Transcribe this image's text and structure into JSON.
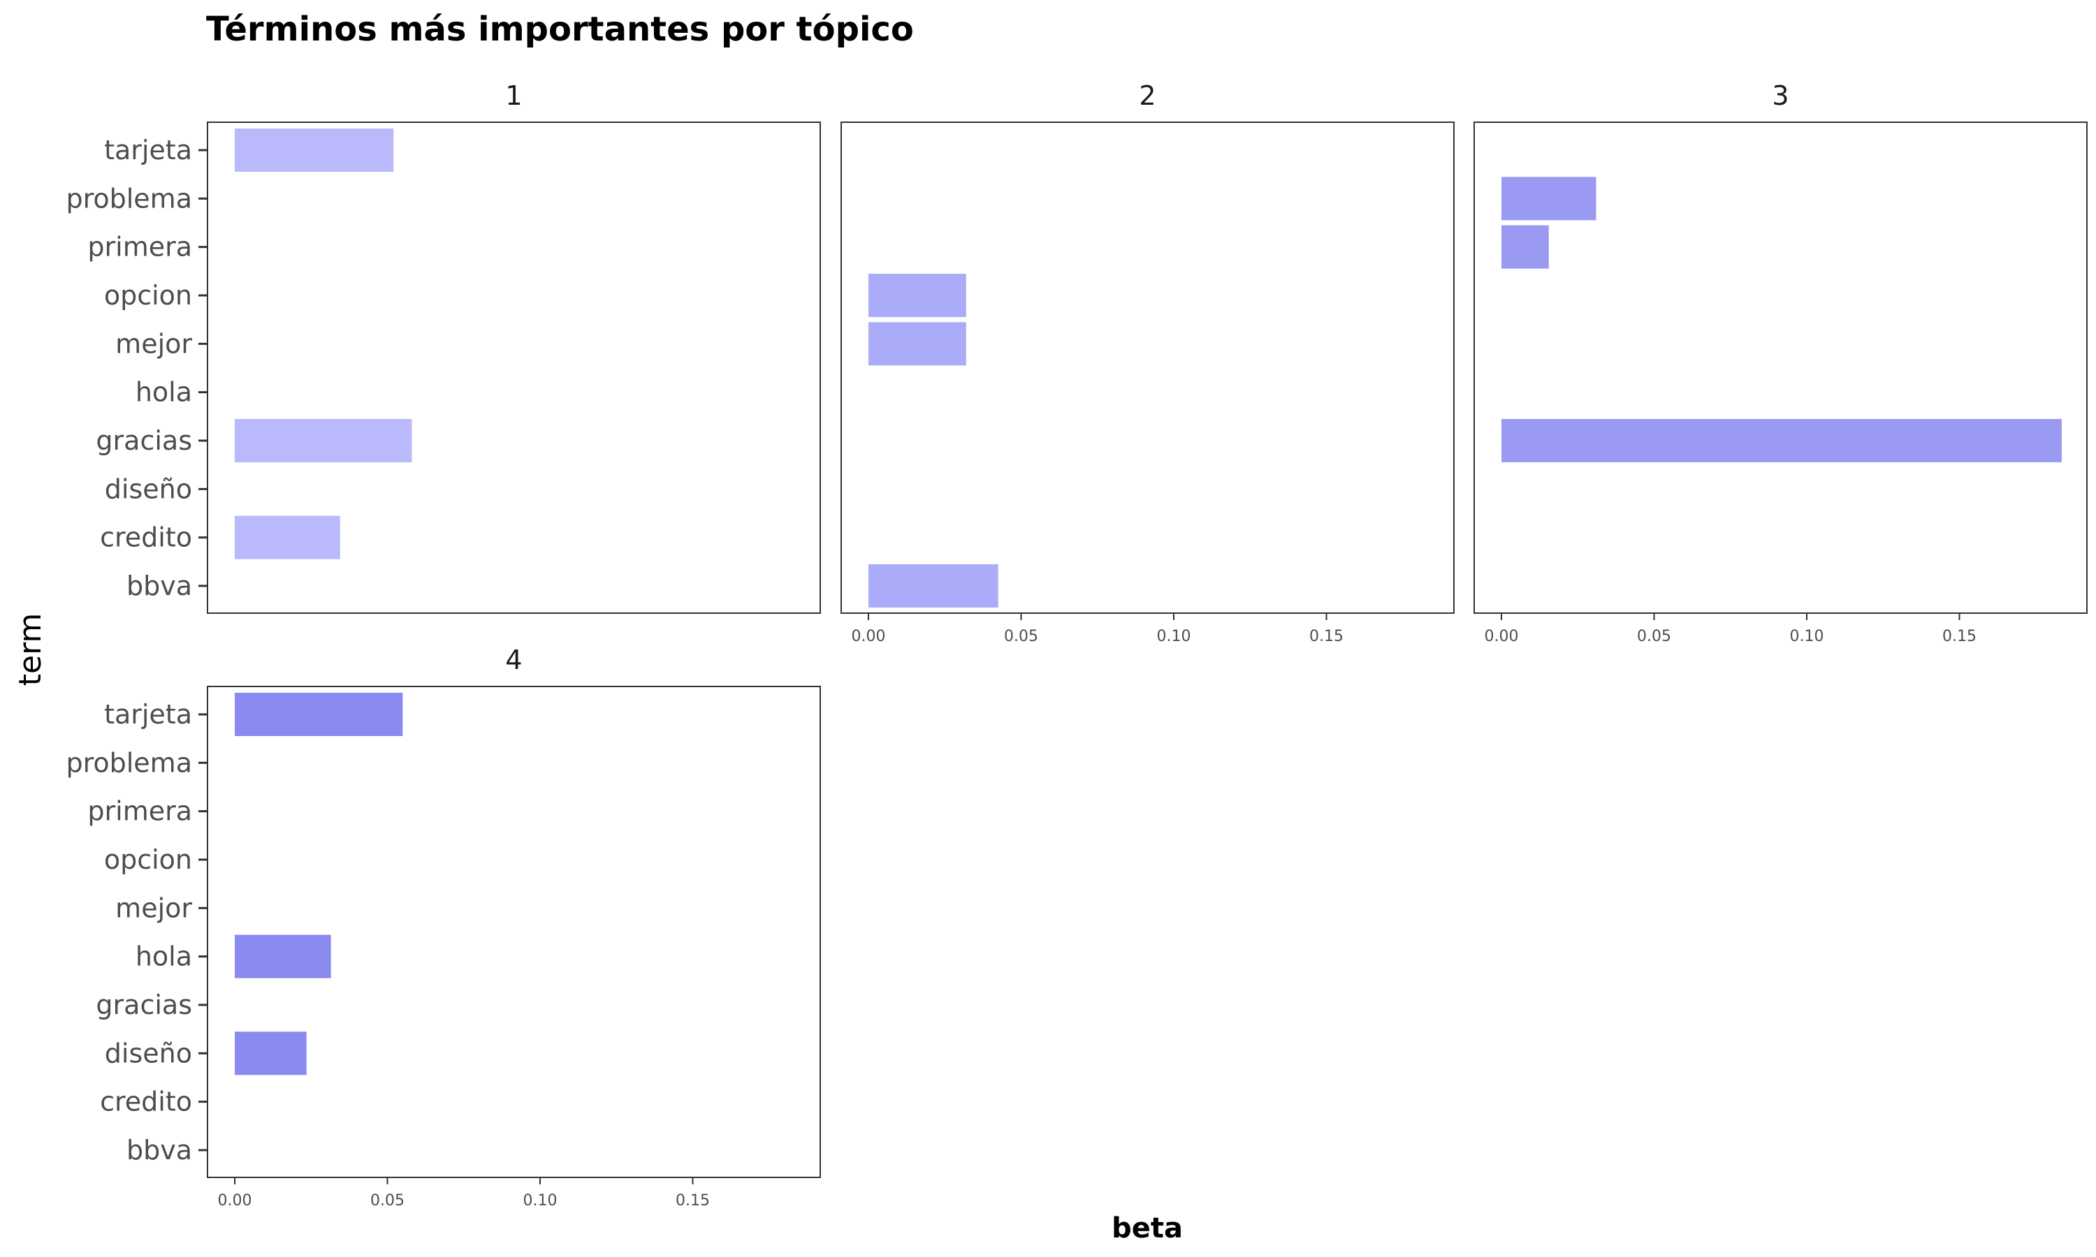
{
  "chart_data": {
    "type": "bar",
    "orientation": "horizontal",
    "title": "Términos más importantes por tópico",
    "xlabel": "beta",
    "ylabel": "term",
    "xlim": [
      -0.009,
      0.192
    ],
    "x_ticks": [
      "0.00",
      "0.05",
      "0.10",
      "0.15"
    ],
    "x_tick_values": [
      0.0,
      0.05,
      0.1,
      0.15
    ],
    "categories": [
      "tarjeta",
      "problema",
      "primera",
      "opcion",
      "mejor",
      "hola",
      "gracias",
      "diseño",
      "credito",
      "bbva"
    ],
    "grid": false,
    "legend": "none",
    "facets": [
      {
        "label": "1",
        "color": "#b9b9fc",
        "values": [
          {
            "term": "tarjeta",
            "beta": 0.052
          },
          {
            "term": "gracias",
            "beta": 0.058
          },
          {
            "term": "credito",
            "beta": 0.0345
          }
        ]
      },
      {
        "label": "2",
        "color": "#abacf9",
        "values": [
          {
            "term": "opcion",
            "beta": 0.032
          },
          {
            "term": "mejor",
            "beta": 0.032
          },
          {
            "term": "bbva",
            "beta": 0.0425
          }
        ]
      },
      {
        "label": "3",
        "color": "#9a9af3",
        "values": [
          {
            "term": "problema",
            "beta": 0.031
          },
          {
            "term": "primera",
            "beta": 0.0155
          },
          {
            "term": "gracias",
            "beta": 0.1835
          }
        ]
      },
      {
        "label": "4",
        "color": "#8a89ef",
        "values": [
          {
            "term": "tarjeta",
            "beta": 0.055
          },
          {
            "term": "hola",
            "beta": 0.0315
          },
          {
            "term": "diseño",
            "beta": 0.0235
          }
        ]
      }
    ]
  }
}
